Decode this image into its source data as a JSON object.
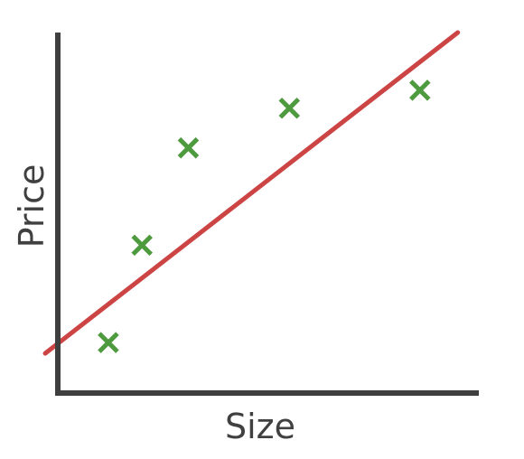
{
  "chart_data": {
    "type": "scatter",
    "title": "",
    "xlabel": "Size",
    "ylabel": "Price",
    "xlim": [
      0,
      10
    ],
    "ylim": [
      0,
      10
    ],
    "grid": false,
    "legend": "none",
    "series": [
      {
        "kind": "scatter",
        "marker": "x",
        "color": "#4e9a3e",
        "x": [
          1.2,
          2.0,
          3.1,
          5.5,
          8.6
        ],
        "y": [
          1.4,
          4.1,
          6.8,
          7.9,
          8.4
        ]
      },
      {
        "kind": "line",
        "color": "#cc4444",
        "x": [
          -0.3,
          9.5
        ],
        "y": [
          1.1,
          10.0
        ]
      }
    ]
  }
}
